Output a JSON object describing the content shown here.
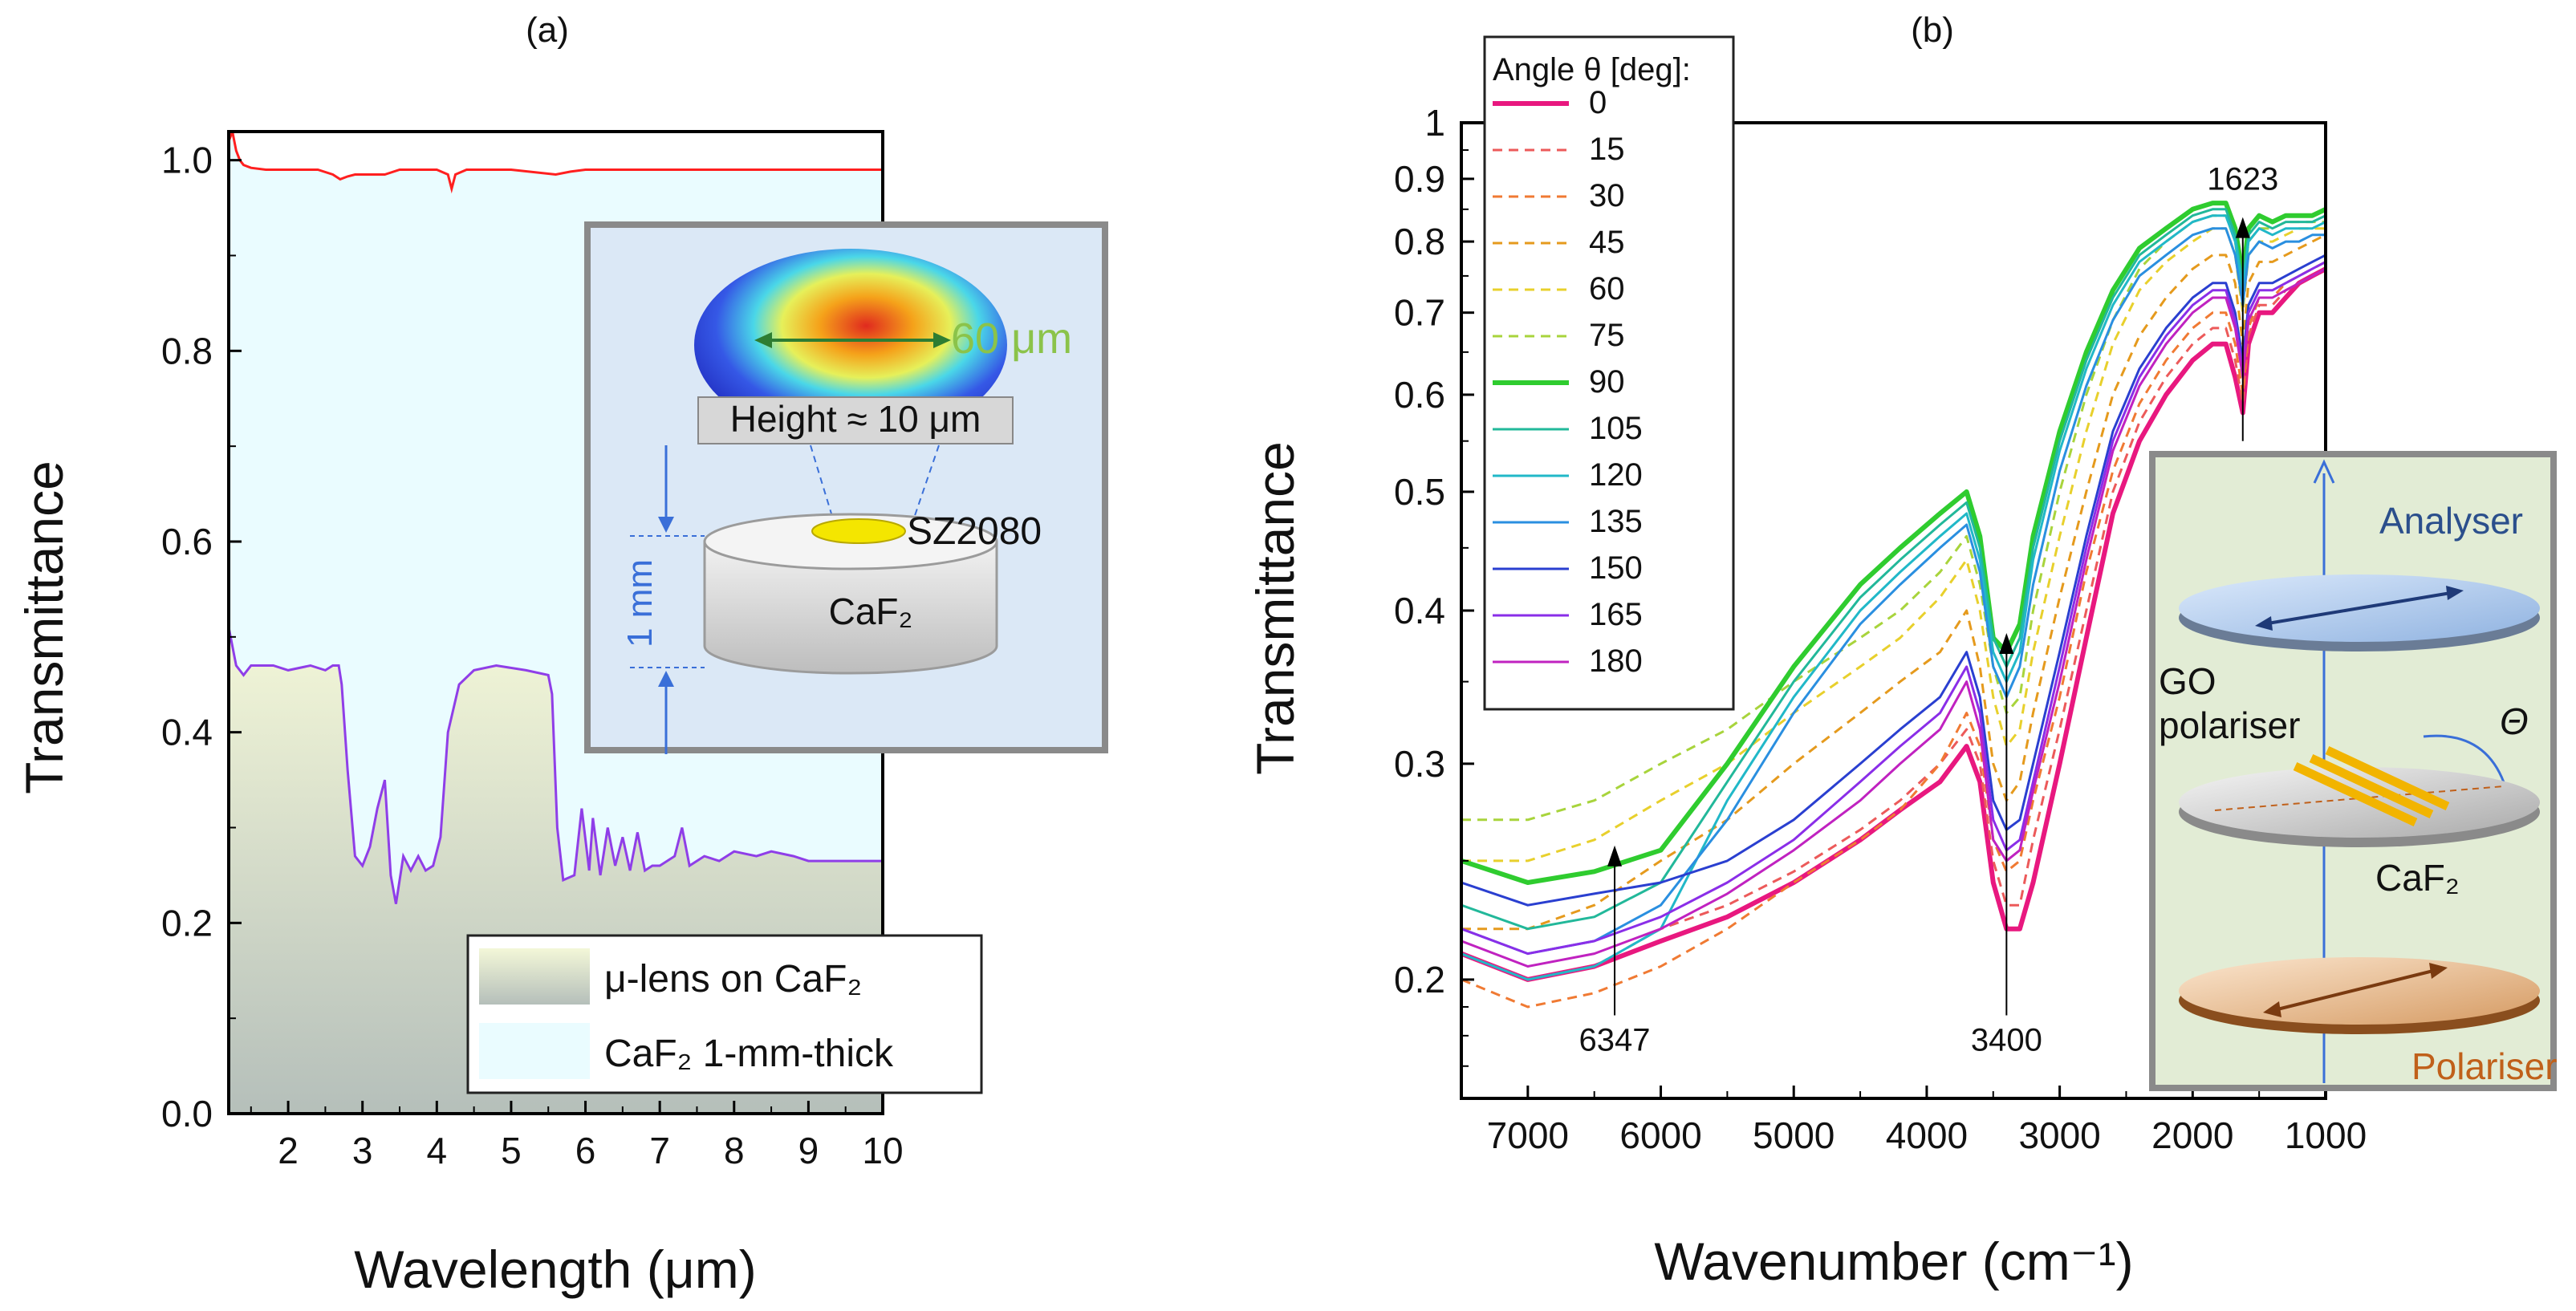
{
  "chart_data": [
    {
      "type": "area",
      "panel_label": "(a)",
      "xlabel": "Wavelength (μm)",
      "ylabel": "Transmittance",
      "xlim": [
        1.2,
        10
      ],
      "ylim": [
        0,
        1.03
      ],
      "xticks": [
        "2",
        "3",
        "4",
        "5",
        "6",
        "7",
        "8",
        "9",
        "10"
      ],
      "yticks": [
        "0.0",
        "0.2",
        "0.4",
        "0.6",
        "0.8",
        "1.0"
      ],
      "grid": false,
      "legend_position": "bottom-right",
      "series": [
        {
          "name": "CaF₂ 1-mm-thick",
          "line_color": "#ff1f1f",
          "fill_color": "#eafcff",
          "x": [
            1.2,
            1.25,
            1.3,
            1.35,
            1.4,
            1.5,
            1.7,
            2.0,
            2.4,
            2.6,
            2.7,
            2.8,
            2.9,
            3.0,
            3.3,
            3.5,
            4.0,
            4.15,
            4.2,
            4.25,
            4.4,
            5.0,
            5.6,
            5.8,
            6.0,
            6.5,
            7.0,
            8.0,
            9.0,
            10.0
          ],
          "y": [
            1.02,
            1.03,
            1.01,
            1.0,
            0.995,
            0.992,
            0.99,
            0.99,
            0.99,
            0.985,
            0.98,
            0.983,
            0.985,
            0.985,
            0.985,
            0.99,
            0.99,
            0.985,
            0.97,
            0.985,
            0.99,
            0.99,
            0.985,
            0.988,
            0.99,
            0.99,
            0.99,
            0.99,
            0.99,
            0.99
          ]
        },
        {
          "name": "μ-lens on CaF₂",
          "line_color": "#8f3ee8",
          "fill_color": "#eff3dc",
          "x": [
            1.2,
            1.3,
            1.4,
            1.5,
            1.6,
            1.7,
            1.8,
            2.0,
            2.3,
            2.5,
            2.6,
            2.68,
            2.72,
            2.8,
            2.9,
            3.0,
            3.1,
            3.2,
            3.3,
            3.38,
            3.45,
            3.55,
            3.65,
            3.75,
            3.85,
            3.95,
            4.05,
            4.15,
            4.3,
            4.5,
            4.8,
            5.2,
            5.5,
            5.55,
            5.62,
            5.7,
            5.85,
            5.95,
            6.05,
            6.1,
            6.2,
            6.3,
            6.4,
            6.5,
            6.6,
            6.7,
            6.8,
            6.9,
            7.0,
            7.2,
            7.3,
            7.4,
            7.6,
            7.8,
            8.0,
            8.3,
            8.5,
            8.8,
            9.0,
            9.5,
            10.0
          ],
          "y": [
            0.51,
            0.47,
            0.46,
            0.47,
            0.47,
            0.47,
            0.47,
            0.465,
            0.47,
            0.465,
            0.47,
            0.47,
            0.45,
            0.36,
            0.27,
            0.26,
            0.28,
            0.32,
            0.35,
            0.25,
            0.22,
            0.27,
            0.255,
            0.27,
            0.255,
            0.26,
            0.29,
            0.4,
            0.45,
            0.465,
            0.47,
            0.465,
            0.46,
            0.44,
            0.3,
            0.245,
            0.25,
            0.32,
            0.255,
            0.31,
            0.25,
            0.3,
            0.26,
            0.29,
            0.255,
            0.295,
            0.255,
            0.26,
            0.26,
            0.27,
            0.3,
            0.26,
            0.27,
            0.265,
            0.275,
            0.27,
            0.275,
            0.27,
            0.265,
            0.265,
            0.265
          ]
        }
      ],
      "inset": {
        "labels": [
          "60 μm",
          "Height ≈ 10 μm",
          "SZ2080",
          "CaF₂",
          "1 mm"
        ]
      }
    },
    {
      "type": "line",
      "panel_label": "(b)",
      "xlabel": "Wavenumber (cm⁻¹)",
      "ylabel": "Transmittance",
      "xlim": [
        7500,
        1000
      ],
      "ylim": [
        0.16,
        1.0
      ],
      "y_scale": "log",
      "xticks": [
        "7000",
        "6000",
        "5000",
        "4000",
        "3000",
        "2000",
        "1000"
      ],
      "yticks": [
        "0.2",
        "0.3",
        "0.4",
        "0.5",
        "0.6",
        "0.7",
        "0.8",
        "0.9",
        "1"
      ],
      "grid": false,
      "legend_title": "Angle θ [deg]:",
      "legend_position": "top-left",
      "annotations": [
        {
          "text": "6347",
          "x": 6347,
          "y": 0.255
        },
        {
          "text": "3400",
          "x": 3400,
          "y": 0.38
        },
        {
          "text": "1623",
          "x": 1623,
          "y": 0.83
        }
      ],
      "x": [
        7500,
        7000,
        6500,
        6000,
        5500,
        5000,
        4500,
        4200,
        3900,
        3700,
        3600,
        3500,
        3400,
        3300,
        3200,
        3000,
        2800,
        2600,
        2400,
        2200,
        2000,
        1850,
        1750,
        1680,
        1623,
        1580,
        1500,
        1400,
        1300,
        1200,
        1100,
        1000
      ],
      "series": [
        {
          "name": "0",
          "color": "#e8187f",
          "dash": "solid",
          "width": 6,
          "y": [
            0.21,
            0.2,
            0.205,
            0.215,
            0.225,
            0.24,
            0.26,
            0.275,
            0.29,
            0.31,
            0.29,
            0.24,
            0.22,
            0.22,
            0.24,
            0.3,
            0.38,
            0.48,
            0.55,
            0.6,
            0.64,
            0.66,
            0.66,
            0.62,
            0.58,
            0.66,
            0.7,
            0.7,
            0.72,
            0.74,
            0.75,
            0.76
          ]
        },
        {
          "name": "15",
          "color": "#ec5a5a",
          "dash": "dashed",
          "width": 3,
          "y": [
            0.21,
            0.2,
            0.205,
            0.22,
            0.23,
            0.245,
            0.265,
            0.28,
            0.3,
            0.32,
            0.3,
            0.25,
            0.23,
            0.23,
            0.26,
            0.32,
            0.4,
            0.5,
            0.57,
            0.62,
            0.66,
            0.68,
            0.68,
            0.64,
            0.59,
            0.67,
            0.71,
            0.71,
            0.73,
            0.74,
            0.75,
            0.76
          ]
        },
        {
          "name": "30",
          "color": "#f07a33",
          "dash": "dashed",
          "width": 3,
          "y": [
            0.2,
            0.19,
            0.195,
            0.205,
            0.22,
            0.24,
            0.26,
            0.275,
            0.3,
            0.33,
            0.31,
            0.26,
            0.245,
            0.25,
            0.28,
            0.34,
            0.43,
            0.52,
            0.59,
            0.64,
            0.68,
            0.7,
            0.7,
            0.66,
            0.6,
            0.68,
            0.72,
            0.72,
            0.74,
            0.75,
            0.76,
            0.77
          ]
        },
        {
          "name": "45",
          "color": "#e59a1d",
          "dash": "dashed",
          "width": 3,
          "y": [
            0.22,
            0.22,
            0.23,
            0.25,
            0.27,
            0.3,
            0.33,
            0.35,
            0.37,
            0.4,
            0.36,
            0.3,
            0.28,
            0.29,
            0.33,
            0.41,
            0.5,
            0.6,
            0.67,
            0.72,
            0.76,
            0.78,
            0.78,
            0.74,
            0.66,
            0.74,
            0.77,
            0.77,
            0.78,
            0.79,
            0.8,
            0.81
          ]
        },
        {
          "name": "60",
          "color": "#e8d02c",
          "dash": "dashed",
          "width": 3,
          "y": [
            0.25,
            0.25,
            0.26,
            0.28,
            0.3,
            0.33,
            0.36,
            0.38,
            0.41,
            0.44,
            0.4,
            0.34,
            0.31,
            0.32,
            0.37,
            0.46,
            0.56,
            0.66,
            0.73,
            0.77,
            0.8,
            0.82,
            0.82,
            0.78,
            0.7,
            0.78,
            0.8,
            0.8,
            0.81,
            0.82,
            0.82,
            0.82
          ]
        },
        {
          "name": "75",
          "color": "#a8d43c",
          "dash": "dashed",
          "width": 3,
          "y": [
            0.27,
            0.27,
            0.28,
            0.3,
            0.32,
            0.35,
            0.38,
            0.4,
            0.43,
            0.46,
            0.42,
            0.36,
            0.33,
            0.34,
            0.4,
            0.5,
            0.6,
            0.69,
            0.76,
            0.8,
            0.83,
            0.84,
            0.84,
            0.8,
            0.72,
            0.8,
            0.82,
            0.82,
            0.83,
            0.83,
            0.83,
            0.83
          ]
        },
        {
          "name": "90",
          "color": "#2fcc2f",
          "dash": "solid",
          "width": 6,
          "y": [
            0.25,
            0.24,
            0.245,
            0.255,
            0.3,
            0.36,
            0.42,
            0.45,
            0.48,
            0.5,
            0.46,
            0.38,
            0.37,
            0.39,
            0.46,
            0.56,
            0.65,
            0.73,
            0.79,
            0.82,
            0.85,
            0.86,
            0.86,
            0.82,
            0.75,
            0.82,
            0.84,
            0.83,
            0.84,
            0.84,
            0.84,
            0.85
          ]
        },
        {
          "name": "105",
          "color": "#22b89a",
          "dash": "solid",
          "width": 3,
          "y": [
            0.23,
            0.22,
            0.225,
            0.24,
            0.29,
            0.35,
            0.41,
            0.44,
            0.47,
            0.49,
            0.45,
            0.38,
            0.36,
            0.38,
            0.45,
            0.55,
            0.64,
            0.72,
            0.78,
            0.81,
            0.84,
            0.85,
            0.85,
            0.81,
            0.74,
            0.81,
            0.83,
            0.82,
            0.83,
            0.83,
            0.83,
            0.84
          ]
        },
        {
          "name": "120",
          "color": "#21b8c8",
          "dash": "solid",
          "width": 3,
          "y": [
            0.21,
            0.2,
            0.205,
            0.22,
            0.28,
            0.34,
            0.4,
            0.43,
            0.46,
            0.48,
            0.44,
            0.37,
            0.35,
            0.37,
            0.44,
            0.54,
            0.63,
            0.71,
            0.77,
            0.8,
            0.83,
            0.84,
            0.84,
            0.8,
            0.73,
            0.8,
            0.82,
            0.81,
            0.82,
            0.82,
            0.82,
            0.83
          ]
        },
        {
          "name": "135",
          "color": "#2a8fe0",
          "dash": "solid",
          "width": 3,
          "y": [
            0.22,
            0.21,
            0.215,
            0.23,
            0.27,
            0.33,
            0.39,
            0.42,
            0.45,
            0.47,
            0.43,
            0.36,
            0.34,
            0.36,
            0.42,
            0.52,
            0.61,
            0.69,
            0.75,
            0.78,
            0.81,
            0.82,
            0.82,
            0.78,
            0.71,
            0.78,
            0.8,
            0.79,
            0.8,
            0.8,
            0.81,
            0.81
          ]
        },
        {
          "name": "150",
          "color": "#2a3fd0",
          "dash": "solid",
          "width": 3,
          "y": [
            0.24,
            0.23,
            0.235,
            0.24,
            0.25,
            0.27,
            0.3,
            0.32,
            0.34,
            0.37,
            0.34,
            0.28,
            0.265,
            0.27,
            0.3,
            0.37,
            0.46,
            0.56,
            0.63,
            0.68,
            0.72,
            0.74,
            0.74,
            0.7,
            0.64,
            0.71,
            0.74,
            0.74,
            0.75,
            0.76,
            0.77,
            0.78
          ]
        },
        {
          "name": "165",
          "color": "#8a2ee8",
          "dash": "solid",
          "width": 3,
          "y": [
            0.22,
            0.21,
            0.215,
            0.225,
            0.24,
            0.26,
            0.29,
            0.31,
            0.33,
            0.36,
            0.33,
            0.27,
            0.255,
            0.26,
            0.29,
            0.36,
            0.45,
            0.55,
            0.62,
            0.67,
            0.71,
            0.73,
            0.73,
            0.69,
            0.63,
            0.7,
            0.73,
            0.73,
            0.74,
            0.75,
            0.76,
            0.77
          ]
        },
        {
          "name": "180",
          "color": "#c022c0",
          "dash": "solid",
          "width": 3,
          "y": [
            0.215,
            0.205,
            0.21,
            0.22,
            0.235,
            0.255,
            0.28,
            0.3,
            0.32,
            0.35,
            0.32,
            0.26,
            0.25,
            0.255,
            0.285,
            0.35,
            0.44,
            0.54,
            0.61,
            0.66,
            0.7,
            0.72,
            0.72,
            0.68,
            0.62,
            0.69,
            0.72,
            0.72,
            0.73,
            0.74,
            0.75,
            0.76
          ]
        }
      ],
      "inset": {
        "labels": [
          "Analyser",
          "GO polariser",
          "Θ",
          "CaF₂",
          "Polariser"
        ],
        "colors": {
          "analyser": "#2b4f8c",
          "polariser": "#c0601a",
          "background": "#e2ecd5"
        }
      }
    }
  ]
}
